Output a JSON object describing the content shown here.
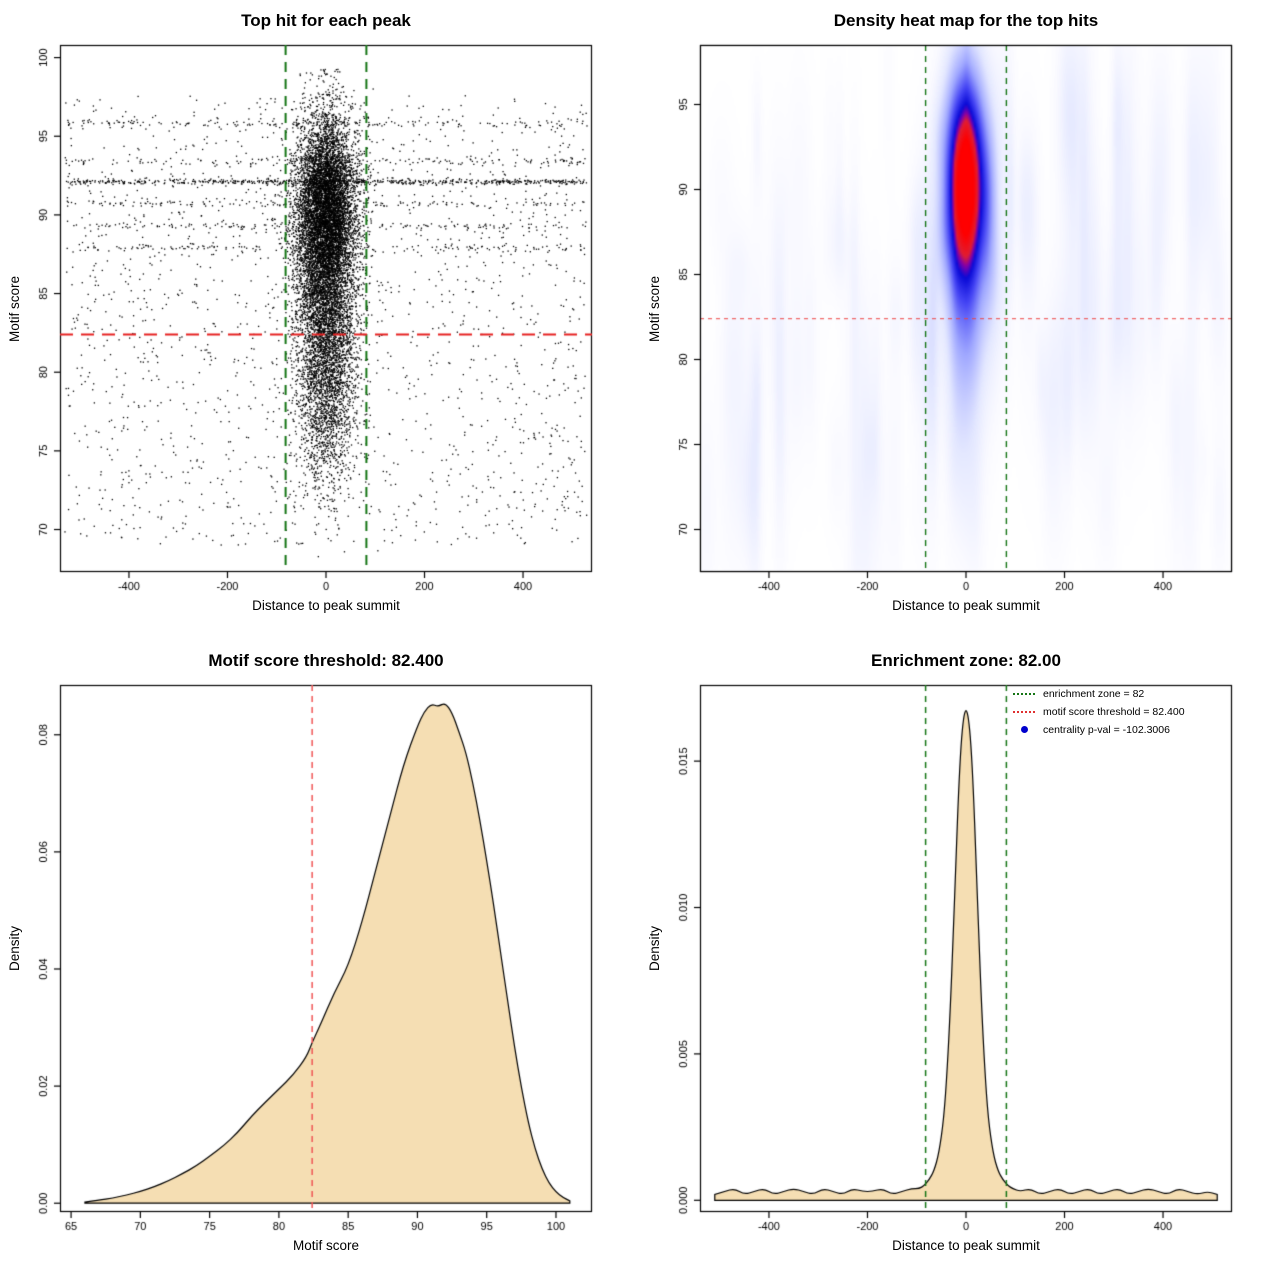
{
  "chart_data": [
    {
      "id": "top-hit-scatter",
      "type": "scatter",
      "title": "Top hit for each peak",
      "xlabel": "Distance to peak summit",
      "ylabel": "Motif score",
      "xlim": [
        -540,
        540
      ],
      "ylim": [
        67.3,
        100.8
      ],
      "x_ticks": [
        -400,
        -200,
        0,
        200,
        400
      ],
      "y_ticks": [
        70,
        75,
        80,
        85,
        90,
        95,
        100
      ],
      "enrichment_zone_x": [
        -82,
        82
      ],
      "score_threshold_y": 82.4,
      "colors": {
        "points": "#000000",
        "zone_line": "#157515",
        "threshold_line": "#e62222"
      },
      "point_model": {
        "seed": 42,
        "cluster": {
          "n": 12000,
          "x_sd": 31,
          "x_max": 125,
          "y_components": [
            {
              "w": 0.6,
              "mean": 90.3,
              "sd": 3.0
            },
            {
              "w": 0.27,
              "mean": 84.5,
              "sd": 3.6
            },
            {
              "w": 0.13,
              "mean": 78.5,
              "sd": 3.4
            }
          ]
        },
        "background": {
          "n": 2600,
          "x_half_range": 530,
          "y_min": 69,
          "y_max": 97.6,
          "band_fraction": 0.35
        },
        "band_rows": [
          92.1,
          90.7,
          89.3,
          93.4,
          87.9,
          95.8
        ],
        "dense_band": {
          "y": 92.1,
          "n": 420
        }
      }
    },
    {
      "id": "top-hit-heatmap",
      "type": "heatmap",
      "title": "Density heat map for the top hits",
      "xlabel": "Distance to peak summit",
      "ylabel": "Motif score",
      "xlim": [
        -540,
        540
      ],
      "ylim": [
        67.5,
        98.5
      ],
      "x_ticks": [
        -400,
        -200,
        0,
        200,
        400
      ],
      "y_ticks": [
        70,
        75,
        80,
        85,
        90,
        95
      ],
      "enrichment_zone_x": [
        -82,
        82
      ],
      "score_threshold_y": 82.4,
      "colors": {
        "zone_line": "#157515",
        "threshold_line": "#ee4444"
      },
      "density_center": {
        "x": 0,
        "y": 90.6,
        "x_sd": 29,
        "y_sd": 4.4
      },
      "secondary_lobe": {
        "x": 0,
        "y": 83.5,
        "x_sd": 33,
        "y_sd": 6.5,
        "amp": 0.22
      },
      "noise": {
        "seed": 7,
        "n_streaks": 140,
        "amp_max": 0.05
      },
      "colormap_stops": [
        [
          0,
          255,
          255,
          255
        ],
        [
          0.04,
          250,
          250,
          255
        ],
        [
          0.15,
          228,
          232,
          255
        ],
        [
          0.35,
          160,
          168,
          255
        ],
        [
          0.55,
          70,
          70,
          245
        ],
        [
          0.7,
          10,
          10,
          215
        ],
        [
          0.78,
          130,
          0,
          170
        ],
        [
          0.85,
          225,
          30,
          50
        ],
        [
          1,
          255,
          0,
          0
        ]
      ]
    },
    {
      "id": "motif-score-density",
      "type": "density",
      "title": "Motif score threshold: 82.400",
      "xlabel": "Motif score",
      "ylabel": "Density",
      "xlim": [
        64.2,
        102.6
      ],
      "ylim": [
        -0.0015,
        0.0885
      ],
      "x_ticks": [
        65,
        70,
        75,
        80,
        85,
        90,
        95,
        100
      ],
      "y_ticks": [
        0,
        0.02,
        0.04,
        0.06,
        0.08
      ],
      "y_tick_labels": [
        "0.00",
        "0.02",
        "0.04",
        "0.06",
        "0.08"
      ],
      "threshold_x": 82.4,
      "fill": "#F5DEB3",
      "colors": {
        "threshold_line": "#f05555"
      },
      "curve": [
        [
          66,
          0.0002
        ],
        [
          67,
          0.0005
        ],
        [
          68,
          0.0009
        ],
        [
          69,
          0.0014
        ],
        [
          70,
          0.002
        ],
        [
          71,
          0.0028
        ],
        [
          72,
          0.0038
        ],
        [
          73,
          0.005
        ],
        [
          74,
          0.0063
        ],
        [
          75,
          0.008
        ],
        [
          76,
          0.0098
        ],
        [
          77,
          0.012
        ],
        [
          78,
          0.0148
        ],
        [
          79,
          0.0172
        ],
        [
          80,
          0.0195
        ],
        [
          81,
          0.0218
        ],
        [
          82,
          0.025
        ],
        [
          82.4,
          0.0275
        ],
        [
          83,
          0.0305
        ],
        [
          84,
          0.036
        ],
        [
          85,
          0.0405
        ],
        [
          86,
          0.048
        ],
        [
          87,
          0.057
        ],
        [
          88,
          0.066
        ],
        [
          89,
          0.075
        ],
        [
          90,
          0.0815
        ],
        [
          90.5,
          0.084
        ],
        [
          91,
          0.0853
        ],
        [
          91.5,
          0.0848
        ],
        [
          92,
          0.0855
        ],
        [
          92.5,
          0.0838
        ],
        [
          93,
          0.0805
        ],
        [
          93.5,
          0.077
        ],
        [
          94,
          0.0718
        ],
        [
          94.5,
          0.0655
        ],
        [
          95,
          0.0585
        ],
        [
          95.5,
          0.051
        ],
        [
          96,
          0.0428
        ],
        [
          96.5,
          0.0348
        ],
        [
          97,
          0.0268
        ],
        [
          97.5,
          0.0198
        ],
        [
          98,
          0.0138
        ],
        [
          98.5,
          0.0092
        ],
        [
          99,
          0.0058
        ],
        [
          99.5,
          0.0034
        ],
        [
          100,
          0.0019
        ],
        [
          100.5,
          0.001
        ],
        [
          101,
          0.0004
        ]
      ]
    },
    {
      "id": "distance-density",
      "type": "density",
      "title": "Enrichment zone: 82.00",
      "xlabel": "Distance to peak summit",
      "ylabel": "Density",
      "xlim": [
        -540,
        540
      ],
      "ylim": [
        -0.0004,
        0.0176
      ],
      "x_ticks": [
        -400,
        -200,
        0,
        200,
        400
      ],
      "y_ticks": [
        0,
        0.005,
        0.01,
        0.015
      ],
      "y_tick_labels": [
        "0.000",
        "0.005",
        "0.010",
        "0.015"
      ],
      "zone_x": [
        -82,
        82
      ],
      "fill": "#F5DEB3",
      "colors": {
        "zone_line": "#157515"
      },
      "curve": [
        [
          -510,
          0.0002
        ],
        [
          -490,
          0.0003
        ],
        [
          -470,
          0.0004
        ],
        [
          -450,
          0.0002
        ],
        [
          -430,
          0.0003
        ],
        [
          -410,
          0.0004
        ],
        [
          -390,
          0.0002
        ],
        [
          -370,
          0.0003
        ],
        [
          -350,
          0.0004
        ],
        [
          -330,
          0.0003
        ],
        [
          -310,
          0.0002
        ],
        [
          -290,
          0.0004
        ],
        [
          -270,
          0.0003
        ],
        [
          -250,
          0.0002
        ],
        [
          -230,
          0.0004
        ],
        [
          -210,
          0.0003
        ],
        [
          -190,
          0.0003
        ],
        [
          -170,
          0.0004
        ],
        [
          -150,
          0.0002
        ],
        [
          -130,
          0.0003
        ],
        [
          -110,
          0.0004
        ],
        [
          -95,
          0.0004
        ],
        [
          -85,
          0.0005
        ],
        [
          -75,
          0.0007
        ],
        [
          -65,
          0.001
        ],
        [
          -55,
          0.0016
        ],
        [
          -45,
          0.0028
        ],
        [
          -38,
          0.0045
        ],
        [
          -32,
          0.0065
        ],
        [
          -26,
          0.009
        ],
        [
          -20,
          0.0118
        ],
        [
          -15,
          0.014
        ],
        [
          -10,
          0.0156
        ],
        [
          -5,
          0.0165
        ],
        [
          0,
          0.0168
        ],
        [
          5,
          0.0165
        ],
        [
          10,
          0.0156
        ],
        [
          15,
          0.014
        ],
        [
          20,
          0.0118
        ],
        [
          26,
          0.009
        ],
        [
          32,
          0.0065
        ],
        [
          38,
          0.0045
        ],
        [
          45,
          0.0028
        ],
        [
          55,
          0.0016
        ],
        [
          65,
          0.001
        ],
        [
          75,
          0.0007
        ],
        [
          85,
          0.0005
        ],
        [
          95,
          0.0004
        ],
        [
          110,
          0.0003
        ],
        [
          130,
          0.0004
        ],
        [
          150,
          0.0002
        ],
        [
          170,
          0.0003
        ],
        [
          190,
          0.0004
        ],
        [
          210,
          0.0002
        ],
        [
          230,
          0.0003
        ],
        [
          250,
          0.0004
        ],
        [
          270,
          0.0002
        ],
        [
          290,
          0.0003
        ],
        [
          310,
          0.0004
        ],
        [
          330,
          0.0002
        ],
        [
          350,
          0.0003
        ],
        [
          370,
          0.0004
        ],
        [
          390,
          0.0003
        ],
        [
          410,
          0.0002
        ],
        [
          430,
          0.0004
        ],
        [
          450,
          0.0003
        ],
        [
          470,
          0.0002
        ],
        [
          490,
          0.0003
        ],
        [
          510,
          0.0002
        ]
      ],
      "legend": [
        {
          "label": "enrichment zone = 82",
          "marker": "line",
          "color": "#157515"
        },
        {
          "label": "motif score threshold = 82.400",
          "marker": "line",
          "color": "#e03030"
        },
        {
          "label": "centrality p-val = -102.3006",
          "marker": "point",
          "color": "#0000cd"
        }
      ]
    }
  ]
}
